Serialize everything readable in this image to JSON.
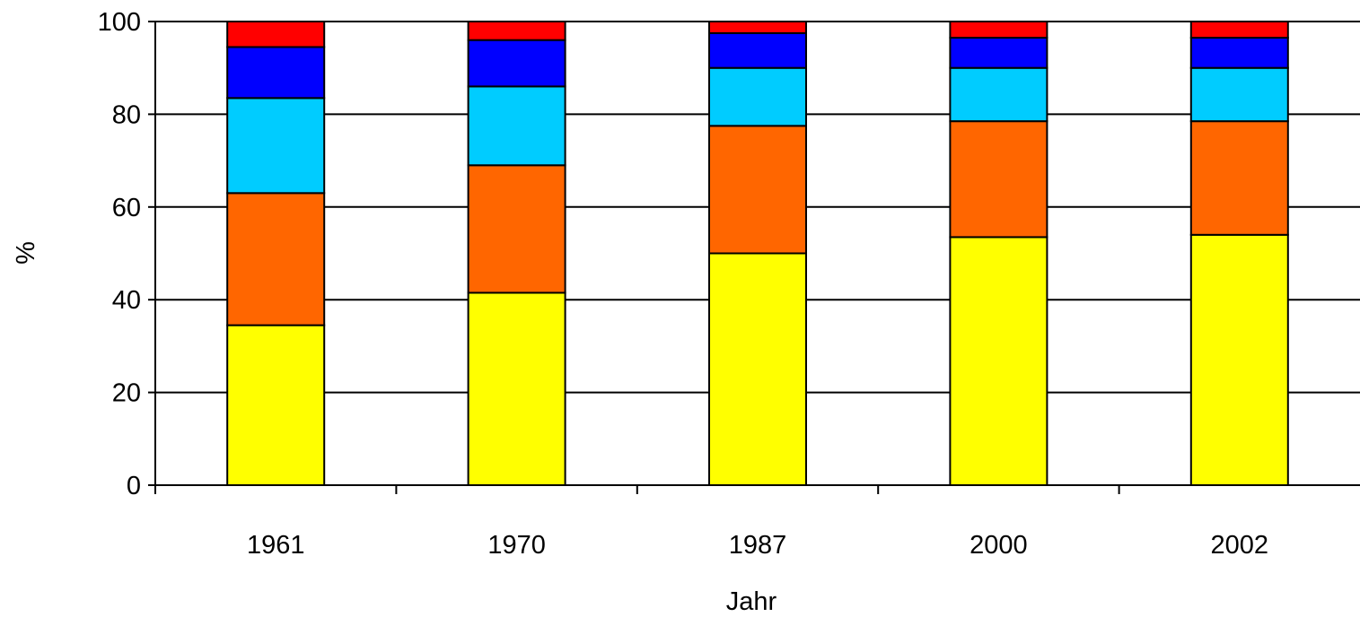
{
  "chart_data": {
    "type": "bar",
    "stacked": true,
    "categories": [
      "1961",
      "1970",
      "1987",
      "2000",
      "2002"
    ],
    "series": [
      {
        "color": "#ffff00",
        "values": [
          34.5,
          41.5,
          50.0,
          53.5,
          54.0
        ]
      },
      {
        "color": "#ff6600",
        "values": [
          28.5,
          27.5,
          27.5,
          25.0,
          24.5
        ]
      },
      {
        "color": "#00ccff",
        "values": [
          20.5,
          17.0,
          12.5,
          11.5,
          11.5
        ]
      },
      {
        "color": "#0000ff",
        "values": [
          11.0,
          10.0,
          7.5,
          6.5,
          6.5
        ]
      },
      {
        "color": "#ff0000",
        "values": [
          5.5,
          4.0,
          2.5,
          3.5,
          3.5
        ]
      }
    ],
    "title": "",
    "xlabel": "Jahr",
    "ylabel": "%",
    "ylim": [
      0,
      100
    ],
    "yticks": [
      "0",
      "20",
      "40",
      "60",
      "80",
      "100"
    ],
    "grid": true,
    "legend": "none"
  }
}
